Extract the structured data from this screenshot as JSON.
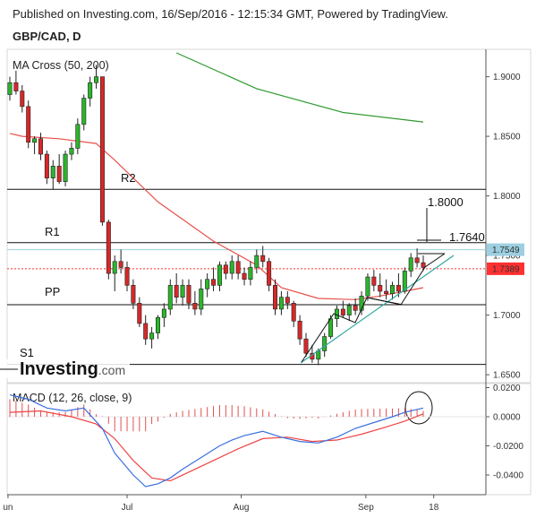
{
  "header": {
    "published_text": "Published on Investing.com, 16/Sep/2016 - 12:15:34 GMT, Powered by TradingView.",
    "symbol": "GBP/CAD, D"
  },
  "logo_text": "Investing.com",
  "main_pane": {
    "indicator_label": "MA Cross (50, 200)",
    "y_ticks": [
      "1.9000",
      "1.8500",
      "1.8000",
      "1.7500",
      "1.7000",
      "1.6500"
    ],
    "price_labels": [
      {
        "value": "1.7549",
        "color": "#9ccfe0",
        "text_color": "#111111"
      },
      {
        "value": "1.7389",
        "color": "#ff3030",
        "text_color": "#ffffff"
      }
    ],
    "levels": [
      {
        "name": "R2",
        "value": 1.8055
      },
      {
        "name": "R1",
        "value": 1.7608
      },
      {
        "name": "PP",
        "value": 1.7087
      },
      {
        "name": "S1",
        "value": 1.6586
      }
    ],
    "annotations": [
      "1.8000",
      "1.7640"
    ],
    "line_colors": {
      "ma50": "#e8504a",
      "ma200": "#2e9a2e",
      "trendline": "#2ca7a0"
    }
  },
  "macd_pane": {
    "indicator_label": "MACD (12, 26, close, 9)",
    "y_ticks": [
      "0.0200",
      "0.0000",
      "-0.0200",
      "-0.0400"
    ],
    "line_colors": {
      "macd": "#3a6fe0",
      "signal": "#ee4444",
      "histogram": "#e05050"
    }
  },
  "x_axis": {
    "labels": [
      "un",
      "Jul",
      "Aug",
      "Sep",
      "18"
    ]
  },
  "chart_data": {
    "type": "candlestick",
    "title": "GBP/CAD, D",
    "y_range": [
      1.645,
      1.925
    ],
    "candles_ohlc": [
      [
        1.885,
        1.9,
        1.88,
        1.895
      ],
      [
        1.895,
        1.905,
        1.885,
        1.888
      ],
      [
        1.888,
        1.893,
        1.87,
        1.875
      ],
      [
        1.875,
        1.88,
        1.84,
        1.845
      ],
      [
        1.845,
        1.85,
        1.835,
        1.848
      ],
      [
        1.848,
        1.853,
        1.83,
        1.835
      ],
      [
        1.835,
        1.838,
        1.81,
        1.815
      ],
      [
        1.815,
        1.83,
        1.805,
        1.825
      ],
      [
        1.825,
        1.835,
        1.81,
        1.812
      ],
      [
        1.812,
        1.838,
        1.808,
        1.835
      ],
      [
        1.835,
        1.845,
        1.83,
        1.84
      ],
      [
        1.84,
        1.865,
        1.835,
        1.86
      ],
      [
        1.86,
        1.885,
        1.855,
        1.882
      ],
      [
        1.882,
        1.9,
        1.875,
        1.895
      ],
      [
        1.895,
        1.91,
        1.89,
        1.9
      ],
      [
        1.9,
        1.9,
        1.775,
        1.778
      ],
      [
        1.778,
        1.78,
        1.73,
        1.735
      ],
      [
        1.735,
        1.75,
        1.72,
        1.745
      ],
      [
        1.745,
        1.755,
        1.735,
        1.74
      ],
      [
        1.74,
        1.745,
        1.72,
        1.725
      ],
      [
        1.725,
        1.73,
        1.705,
        1.71
      ],
      [
        1.71,
        1.715,
        1.69,
        1.693
      ],
      [
        1.693,
        1.7,
        1.675,
        1.68
      ],
      [
        1.68,
        1.69,
        1.672,
        1.685
      ],
      [
        1.685,
        1.7,
        1.68,
        1.698
      ],
      [
        1.698,
        1.71,
        1.69,
        1.705
      ],
      [
        1.705,
        1.73,
        1.7,
        1.725
      ],
      [
        1.725,
        1.735,
        1.71,
        1.715
      ],
      [
        1.715,
        1.73,
        1.708,
        1.725
      ],
      [
        1.725,
        1.73,
        1.705,
        1.71
      ],
      [
        1.71,
        1.72,
        1.7,
        1.705
      ],
      [
        1.705,
        1.73,
        1.7,
        1.722
      ],
      [
        1.722,
        1.735,
        1.715,
        1.73
      ],
      [
        1.73,
        1.74,
        1.72,
        1.725
      ],
      [
        1.725,
        1.745,
        1.72,
        1.742
      ],
      [
        1.742,
        1.745,
        1.73,
        1.735
      ],
      [
        1.735,
        1.75,
        1.73,
        1.745
      ],
      [
        1.745,
        1.75,
        1.73,
        1.735
      ],
      [
        1.735,
        1.74,
        1.725,
        1.73
      ],
      [
        1.73,
        1.745,
        1.725,
        1.74
      ],
      [
        1.74,
        1.755,
        1.735,
        1.75
      ],
      [
        1.75,
        1.758,
        1.74,
        1.745
      ],
      [
        1.745,
        1.748,
        1.72,
        1.725
      ],
      [
        1.725,
        1.73,
        1.7,
        1.705
      ],
      [
        1.705,
        1.72,
        1.7,
        1.715
      ],
      [
        1.715,
        1.72,
        1.705,
        1.71
      ],
      [
        1.71,
        1.712,
        1.69,
        1.695
      ],
      [
        1.695,
        1.7,
        1.675,
        1.68
      ],
      [
        1.68,
        1.685,
        1.665,
        1.668
      ],
      [
        1.668,
        1.675,
        1.66,
        1.663
      ],
      [
        1.663,
        1.672,
        1.658,
        1.67
      ],
      [
        1.67,
        1.685,
        1.665,
        1.682
      ],
      [
        1.682,
        1.7,
        1.68,
        1.697
      ],
      [
        1.697,
        1.708,
        1.69,
        1.705
      ],
      [
        1.705,
        1.712,
        1.698,
        1.7
      ],
      [
        1.7,
        1.71,
        1.695,
        1.708
      ],
      [
        1.708,
        1.714,
        1.7,
        1.704
      ],
      [
        1.704,
        1.72,
        1.7,
        1.716
      ],
      [
        1.716,
        1.735,
        1.712,
        1.732
      ],
      [
        1.732,
        1.738,
        1.72,
        1.725
      ],
      [
        1.725,
        1.735,
        1.715,
        1.72
      ],
      [
        1.72,
        1.73,
        1.713,
        1.718
      ],
      [
        1.718,
        1.728,
        1.713,
        1.725
      ],
      [
        1.725,
        1.735,
        1.715,
        1.72
      ],
      [
        1.72,
        1.74,
        1.718,
        1.737
      ],
      [
        1.737,
        1.752,
        1.732,
        1.748
      ],
      [
        1.748,
        1.756,
        1.74,
        1.744
      ],
      [
        1.744,
        1.75,
        1.737,
        1.74
      ]
    ],
    "ma50_points": [
      [
        0,
        1.8524
      ],
      [
        2,
        1.85
      ],
      [
        8,
        1.848
      ],
      [
        14,
        1.844
      ],
      [
        17,
        1.83
      ],
      [
        24,
        1.795
      ],
      [
        33,
        1.762
      ],
      [
        40,
        1.742
      ],
      [
        44,
        1.723
      ],
      [
        50,
        1.714
      ],
      [
        56,
        1.713
      ],
      [
        60,
        1.716
      ],
      [
        64,
        1.72
      ],
      [
        67,
        1.723
      ]
    ],
    "ma200_points": [
      [
        27,
        1.92
      ],
      [
        40,
        1.89
      ],
      [
        54,
        1.87
      ],
      [
        67,
        1.862
      ]
    ],
    "macd_line": [
      [
        0,
        0.015
      ],
      [
        3,
        0.012
      ],
      [
        6,
        0.006
      ],
      [
        9,
        0.004
      ],
      [
        12,
        0.006
      ],
      [
        15,
        -0.008
      ],
      [
        17,
        -0.025
      ],
      [
        20,
        -0.04
      ],
      [
        22,
        -0.048
      ],
      [
        24,
        -0.046
      ],
      [
        26,
        -0.042
      ],
      [
        28,
        -0.036
      ],
      [
        31,
        -0.028
      ],
      [
        34,
        -0.02
      ],
      [
        36,
        -0.016
      ],
      [
        38,
        -0.013
      ],
      [
        41,
        -0.01
      ],
      [
        44,
        -0.014
      ],
      [
        47,
        -0.017
      ],
      [
        50,
        -0.018
      ],
      [
        53,
        -0.014
      ],
      [
        56,
        -0.008
      ],
      [
        59,
        -0.004
      ],
      [
        62,
        0.0
      ],
      [
        64,
        0.003
      ],
      [
        67,
        0.006
      ]
    ],
    "signal_line": [
      [
        0,
        0.003
      ],
      [
        5,
        0.004
      ],
      [
        10,
        0.0
      ],
      [
        14,
        -0.005
      ],
      [
        17,
        -0.015
      ],
      [
        20,
        -0.03
      ],
      [
        23,
        -0.042
      ],
      [
        26,
        -0.044
      ],
      [
        29,
        -0.038
      ],
      [
        33,
        -0.03
      ],
      [
        37,
        -0.022
      ],
      [
        41,
        -0.015
      ],
      [
        45,
        -0.014
      ],
      [
        49,
        -0.017
      ],
      [
        53,
        -0.016
      ],
      [
        57,
        -0.012
      ],
      [
        61,
        -0.007
      ],
      [
        64,
        -0.003
      ],
      [
        67,
        0.002
      ]
    ],
    "x_labels": [
      "un",
      "Jul",
      "Aug",
      "Sep",
      "18"
    ]
  }
}
